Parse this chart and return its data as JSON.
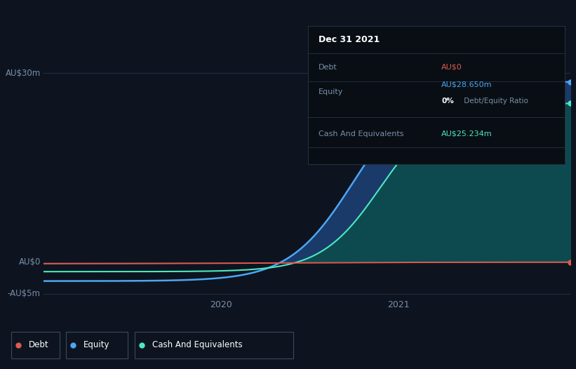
{
  "background_color": "#0d1420",
  "plot_bg_color": "#0d1420",
  "title": "Dec 31 2021",
  "debt_color": "#e05a4e",
  "equity_color": "#4da6f5",
  "cash_color": "#4de8c0",
  "fill_equity_color": "#1a3a6a",
  "fill_cash_color": "#0d4a50",
  "grid_color": "#1e2e3e",
  "text_color": "#7a8fa8",
  "tooltip_bg": "#080e14",
  "tooltip_border": "#252f3a",
  "annotation_debt": "AU$0",
  "annotation_equity": "AU$28.650m",
  "annotation_cash": "AU$25.234m",
  "legend_items": [
    "Debt",
    "Equity",
    "Cash And Equivalents"
  ]
}
